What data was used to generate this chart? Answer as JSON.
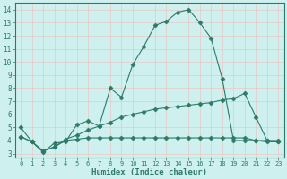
{
  "line1_x": [
    0,
    1,
    2,
    3,
    4,
    5,
    6,
    7,
    8,
    9,
    10,
    11,
    12,
    13,
    14,
    15,
    16,
    17,
    18,
    19,
    20,
    21,
    22,
    23
  ],
  "line1_y": [
    5.0,
    3.9,
    3.1,
    3.8,
    3.9,
    5.2,
    5.5,
    5.1,
    8.0,
    7.3,
    9.8,
    11.2,
    12.8,
    13.1,
    13.8,
    14.0,
    13.0,
    11.8,
    8.7,
    4.0,
    4.0,
    4.0,
    4.0,
    4.0
  ],
  "line2_x": [
    0,
    1,
    2,
    3,
    4,
    5,
    6,
    7,
    8,
    9,
    10,
    11,
    12,
    13,
    14,
    15,
    16,
    17,
    18,
    19,
    20,
    21,
    22,
    23
  ],
  "line2_y": [
    4.3,
    3.9,
    3.2,
    3.5,
    4.1,
    4.4,
    4.8,
    5.1,
    5.4,
    5.8,
    6.0,
    6.2,
    6.4,
    6.5,
    6.6,
    6.7,
    6.8,
    6.9,
    7.1,
    7.2,
    7.6,
    5.8,
    4.0,
    3.9
  ],
  "line3_x": [
    0,
    1,
    2,
    3,
    4,
    5,
    6,
    7,
    8,
    9,
    10,
    11,
    12,
    13,
    14,
    15,
    16,
    17,
    18,
    19,
    20,
    21,
    22,
    23
  ],
  "line3_y": [
    4.3,
    3.9,
    3.2,
    3.5,
    4.0,
    4.1,
    4.2,
    4.2,
    4.2,
    4.2,
    4.2,
    4.2,
    4.2,
    4.2,
    4.2,
    4.2,
    4.2,
    4.2,
    4.2,
    4.2,
    4.2,
    4.0,
    3.9,
    3.9
  ],
  "line_color": "#2d7a6a",
  "bg_color": "#cef0ee",
  "grid_color": "#e8c8c8",
  "xlabel": "Humidex (Indice chaleur)",
  "xlim": [
    -0.5,
    23.5
  ],
  "ylim": [
    2.7,
    14.5
  ],
  "yticks": [
    3,
    4,
    5,
    6,
    7,
    8,
    9,
    10,
    11,
    12,
    13,
    14
  ],
  "xticks": [
    0,
    1,
    2,
    3,
    4,
    5,
    6,
    7,
    8,
    9,
    10,
    11,
    12,
    13,
    14,
    15,
    16,
    17,
    18,
    19,
    20,
    21,
    22,
    23
  ],
  "font_size": 6.5
}
